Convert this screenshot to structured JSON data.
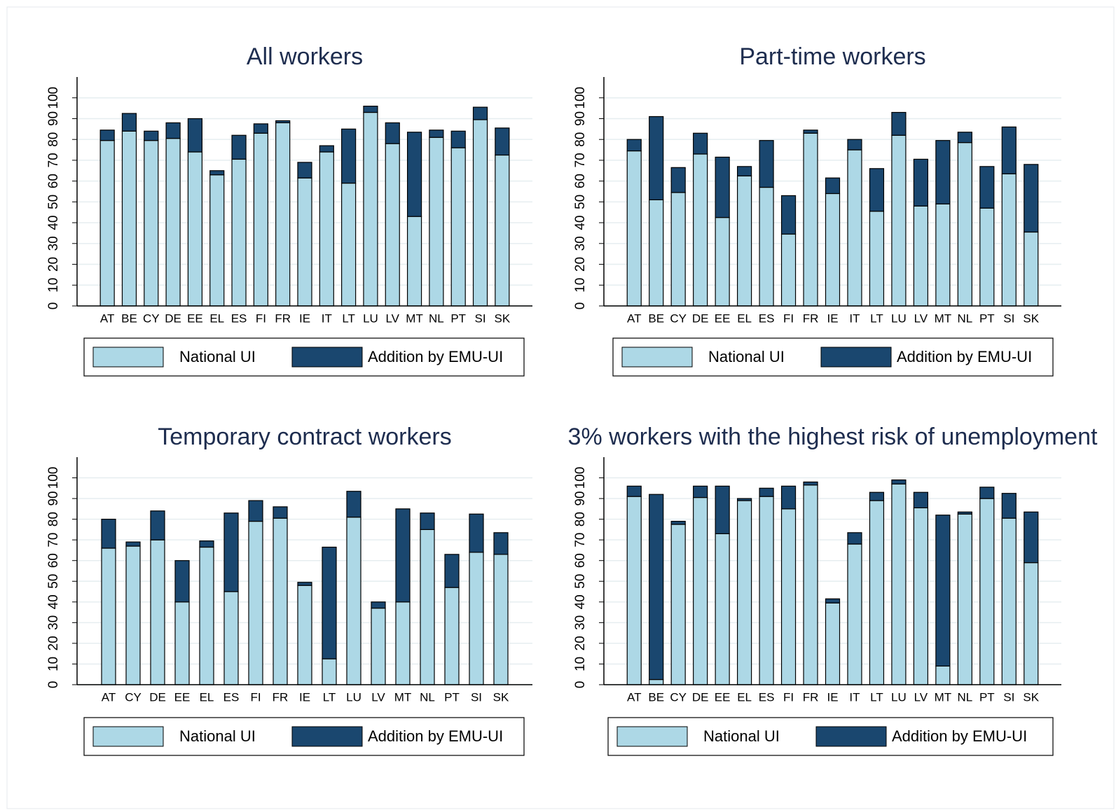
{
  "chart_data": [
    {
      "type": "bar",
      "stacked": true,
      "title": "All workers",
      "grid": true,
      "categories": [
        "AT",
        "BE",
        "CY",
        "DE",
        "EE",
        "EL",
        "ES",
        "FI",
        "FR",
        "IE",
        "IT",
        "LT",
        "LU",
        "LV",
        "MT",
        "NL",
        "PT",
        "SI",
        "SK"
      ],
      "series": [
        {
          "name": "National UI",
          "color": "#add8e6",
          "values": [
            79.5,
            84,
            79.5,
            80.5,
            74,
            63,
            70.5,
            83,
            88,
            61.5,
            74,
            59,
            93,
            78,
            43,
            81,
            76,
            89.5,
            72.5
          ]
        },
        {
          "name": "Addition by EMU-UI",
          "color": "#1a476f",
          "values": [
            5,
            8.5,
            4.5,
            7.5,
            16,
            2,
            11.5,
            4.5,
            1,
            7.5,
            3,
            26,
            3,
            10,
            40.5,
            3.5,
            8,
            6,
            13
          ]
        }
      ],
      "ylim": [
        0,
        110
      ],
      "yticks": [
        0,
        10,
        20,
        30,
        40,
        50,
        60,
        70,
        80,
        90,
        100
      ]
    },
    {
      "type": "bar",
      "stacked": true,
      "title": "Part-time workers",
      "grid": true,
      "categories": [
        "AT",
        "BE",
        "CY",
        "DE",
        "EE",
        "EL",
        "ES",
        "FI",
        "FR",
        "IE",
        "IT",
        "LT",
        "LU",
        "LV",
        "MT",
        "NL",
        "PT",
        "SI",
        "SK"
      ],
      "series": [
        {
          "name": "National UI",
          "color": "#add8e6",
          "values": [
            74.5,
            51,
            54.5,
            73,
            42.5,
            62.5,
            57,
            34.5,
            83,
            54,
            75,
            45.5,
            82,
            48,
            49,
            78.5,
            47,
            63.5,
            35.5
          ]
        },
        {
          "name": "Addition by EMU-UI",
          "color": "#1a476f",
          "values": [
            5.5,
            40,
            12,
            10,
            29,
            4.5,
            22.5,
            18.5,
            1.5,
            7.5,
            5,
            20.5,
            11,
            22.5,
            30.5,
            5,
            20,
            22.5,
            32.5
          ]
        }
      ],
      "ylim": [
        0,
        110
      ],
      "yticks": [
        0,
        10,
        20,
        30,
        40,
        50,
        60,
        70,
        80,
        90,
        100
      ]
    },
    {
      "type": "bar",
      "stacked": true,
      "title": "Temporary contract workers",
      "grid": true,
      "categories": [
        "AT",
        "CY",
        "DE",
        "EE",
        "EL",
        "ES",
        "FI",
        "FR",
        "IE",
        "LT",
        "LU",
        "LV",
        "MT",
        "NL",
        "PT",
        "SI",
        "SK"
      ],
      "series": [
        {
          "name": "National UI",
          "color": "#add8e6",
          "values": [
            66,
            67,
            70,
            40,
            66.5,
            45,
            79,
            80.5,
            48,
            12.5,
            81,
            37,
            40,
            75,
            47,
            64,
            63
          ]
        },
        {
          "name": "Addition by EMU-UI",
          "color": "#1a476f",
          "values": [
            14,
            2,
            14,
            20,
            3,
            38,
            10,
            5.5,
            1.5,
            54,
            12.5,
            3,
            45,
            8,
            16,
            18.5,
            10.5
          ]
        }
      ],
      "ylim": [
        0,
        110
      ],
      "yticks": [
        0,
        10,
        20,
        30,
        40,
        50,
        60,
        70,
        80,
        90,
        100
      ]
    },
    {
      "type": "bar",
      "stacked": true,
      "title": "3% workers with the highest risk of unemployment",
      "grid": true,
      "categories": [
        "AT",
        "BE",
        "CY",
        "DE",
        "EE",
        "EL",
        "ES",
        "FI",
        "FR",
        "IE",
        "IT",
        "LT",
        "LU",
        "LV",
        "MT",
        "NL",
        "PT",
        "SI",
        "SK"
      ],
      "series": [
        {
          "name": "National UI",
          "color": "#add8e6",
          "values": [
            91,
            2.5,
            77.5,
            90.5,
            73,
            89,
            91,
            85,
            96.5,
            39.5,
            68,
            89,
            97,
            85.5,
            9,
            82.5,
            90,
            80.5,
            59
          ]
        },
        {
          "name": "Addition by EMU-UI",
          "color": "#1a476f",
          "values": [
            5,
            89.5,
            1.5,
            5.5,
            23,
            1,
            4,
            11,
            1.5,
            2,
            5.5,
            4,
            2,
            7.5,
            73,
            1,
            5.5,
            12,
            24.5
          ]
        }
      ],
      "ylim": [
        0,
        110
      ],
      "yticks": [
        0,
        10,
        20,
        30,
        40,
        50,
        60,
        70,
        80,
        90,
        100
      ]
    }
  ]
}
